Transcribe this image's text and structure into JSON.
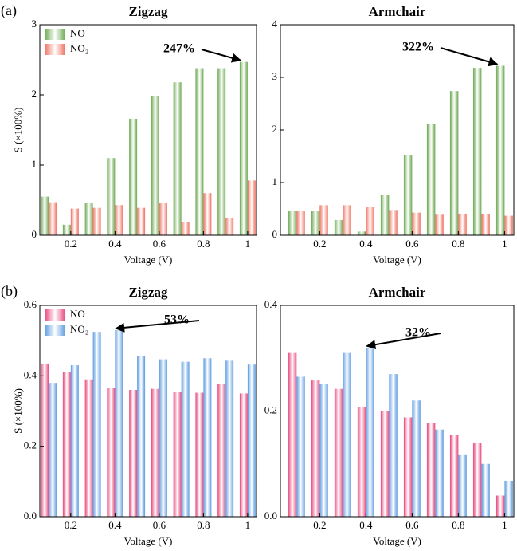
{
  "chart_data": [
    {
      "type": "bar",
      "panel_label": "(a)",
      "title": "Zigzag",
      "xlabel": "Voltage (V)",
      "ylabel": "S (×100%)",
      "x": [
        0.1,
        0.2,
        0.3,
        0.4,
        0.5,
        0.6,
        0.7,
        0.8,
        0.9,
        1.0
      ],
      "series": [
        {
          "name": "NO",
          "color": "#6aa84f",
          "values": [
            0.55,
            0.15,
            0.46,
            1.1,
            1.66,
            1.98,
            2.18,
            2.38,
            2.38,
            2.47
          ]
        },
        {
          "name": "NO₂",
          "color": "#f07060",
          "values": [
            0.47,
            0.38,
            0.39,
            0.43,
            0.39,
            0.46,
            0.19,
            0.6,
            0.25,
            0.78
          ]
        }
      ],
      "xlim": [
        0.06,
        1.04
      ],
      "xticks": [
        0.2,
        0.4,
        0.6,
        0.8,
        1
      ],
      "ylim": [
        0,
        3
      ],
      "yticks": [
        0,
        1,
        2,
        3
      ],
      "legend": "upper left",
      "annotation": "247%"
    },
    {
      "type": "bar",
      "title": "Armchair",
      "xlabel": "Voltage (V)",
      "x": [
        0.1,
        0.2,
        0.3,
        0.4,
        0.5,
        0.6,
        0.7,
        0.8,
        0.9,
        1.0
      ],
      "series": [
        {
          "color": "#6aa84f",
          "values": [
            0.47,
            0.46,
            0.29,
            0.07,
            0.76,
            1.52,
            2.12,
            2.74,
            3.18,
            3.22
          ]
        },
        {
          "color": "#f07060",
          "values": [
            0.47,
            0.57,
            0.57,
            0.54,
            0.48,
            0.43,
            0.39,
            0.41,
            0.4,
            0.37
          ]
        }
      ],
      "xlim": [
        0.03,
        1.04
      ],
      "xticks": [
        0.2,
        0.4,
        0.6,
        0.8,
        1
      ],
      "ylim": [
        0,
        4
      ],
      "yticks": [
        0,
        1,
        2,
        3,
        4
      ],
      "annotation": "322%"
    },
    {
      "type": "bar",
      "panel_label": "(b)",
      "title": "Zigzag",
      "xlabel": "Voltage (V)",
      "ylabel": "S (×100%)",
      "x": [
        0.1,
        0.2,
        0.3,
        0.4,
        0.5,
        0.6,
        0.7,
        0.8,
        0.9,
        1.0
      ],
      "series": [
        {
          "name": "NO",
          "color": "#e8457a",
          "values": [
            0.435,
            0.41,
            0.39,
            0.365,
            0.36,
            0.363,
            0.355,
            0.352,
            0.377,
            0.35
          ]
        },
        {
          "name": "NO₂",
          "color": "#5b9be0",
          "values": [
            0.38,
            0.43,
            0.525,
            0.53,
            0.457,
            0.447,
            0.44,
            0.45,
            0.443,
            0.432
          ]
        }
      ],
      "xlim": [
        0.06,
        1.04
      ],
      "xticks": [
        0.2,
        0.4,
        0.6,
        0.8,
        1
      ],
      "ylim": [
        0,
        0.6
      ],
      "yticks": [
        {
          "value": 0,
          "label": "0.0"
        },
        0.2,
        0.4,
        0.6
      ],
      "legend": "upper left",
      "annotation": "53%"
    },
    {
      "type": "bar",
      "title": "Armchair",
      "xlabel": "Voltage (V)",
      "x": [
        0.1,
        0.2,
        0.3,
        0.4,
        0.5,
        0.6,
        0.7,
        0.8,
        0.9,
        1.0
      ],
      "series": [
        {
          "color": "#e8457a",
          "values": [
            0.31,
            0.258,
            0.242,
            0.208,
            0.2,
            0.188,
            0.178,
            0.155,
            0.14,
            0.04
          ]
        },
        {
          "color": "#5b9be0",
          "values": [
            0.265,
            0.252,
            0.31,
            0.32,
            0.27,
            0.22,
            0.165,
            0.118,
            0.1,
            0.068
          ]
        }
      ],
      "xlim": [
        0.03,
        1.04
      ],
      "xticks": [
        0.2,
        0.4,
        0.6,
        0.8,
        1
      ],
      "ylim": [
        0,
        0.4
      ],
      "yticks": [
        {
          "value": 0,
          "label": "0.0"
        },
        0.2,
        0.4
      ],
      "annotation": "32%"
    }
  ]
}
